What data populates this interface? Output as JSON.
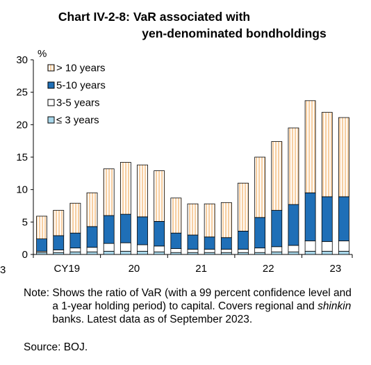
{
  "title": {
    "line1": "Chart IV-2-8: VaR associated with",
    "line2": "yen-denominated bondholdings"
  },
  "colors": {
    "gt10": "#f7cfa2",
    "y5_10": "#1f6fb7",
    "y3_5": "#ffffff",
    "le3": "#a9d7ea"
  },
  "chart_data": {
    "type": "bar",
    "stacked": true,
    "ylabel": "%",
    "ylim": [
      0,
      30
    ],
    "yticks": [
      0,
      5,
      10,
      15,
      20,
      25,
      30
    ],
    "x_tick_labels": [
      "CY19",
      "20",
      "21",
      "22",
      "23"
    ],
    "grid": false,
    "legend_position": "top-left",
    "categories": [
      "2019Q1",
      "2019Q2",
      "2019Q3",
      "2019Q4",
      "2020Q1",
      "2020Q2",
      "2020Q3",
      "2020Q4",
      "2021Q1",
      "2021Q2",
      "2021Q3",
      "2021Q4",
      "2022Q1",
      "2022Q2",
      "2022Q3",
      "2022Q4",
      "2023Q1",
      "2023Q2",
      "2023Q3"
    ],
    "series": [
      {
        "name": "≤ 3 years",
        "key": "le3",
        "values": [
          0.3,
          0.3,
          0.4,
          0.4,
          0.5,
          0.5,
          0.5,
          0.4,
          0.3,
          0.3,
          0.3,
          0.3,
          0.3,
          0.3,
          0.4,
          0.4,
          0.5,
          0.5,
          0.5
        ]
      },
      {
        "name": "3-5 years",
        "key": "y3_5",
        "values": [
          0.2,
          0.4,
          0.6,
          0.7,
          1.2,
          1.3,
          1.0,
          0.9,
          0.6,
          0.5,
          0.5,
          0.5,
          0.5,
          0.7,
          0.8,
          1.0,
          1.6,
          1.5,
          1.6
        ]
      },
      {
        "name": "5-10 years",
        "key": "y5_10",
        "values": [
          1.9,
          2.2,
          2.3,
          3.2,
          4.3,
          4.4,
          4.3,
          3.8,
          2.4,
          2.2,
          1.9,
          1.8,
          2.8,
          4.7,
          5.6,
          6.3,
          7.4,
          6.9,
          6.8
        ]
      },
      {
        "name": "> 10 years",
        "key": "gt10",
        "values": [
          3.5,
          3.9,
          4.6,
          5.2,
          7.2,
          8.0,
          8.0,
          7.8,
          5.4,
          4.8,
          5.1,
          5.4,
          7.4,
          9.3,
          10.6,
          11.8,
          14.2,
          13.0,
          12.2
        ]
      }
    ],
    "totals": [
      5.9,
      6.8,
      7.9,
      9.5,
      13.2,
      14.2,
      13.8,
      12.9,
      8.7,
      7.8,
      7.8,
      8.0,
      11.0,
      15.0,
      17.4,
      19.5,
      23.7,
      21.9,
      21.1
    ]
  },
  "legend_order": [
    "gt10",
    "y5_10",
    "y3_5",
    "le3"
  ],
  "note": {
    "label": "Note: ",
    "text_before": "Shows the ratio of VaR (with a 99 percent confidence level and a 1-year holding period) to capital. Covers regional and ",
    "text_italic": "shinkin",
    "text_after": " banks. Latest data as of September 2023."
  },
  "source": "Source: BOJ.",
  "edge_fragment": "3"
}
